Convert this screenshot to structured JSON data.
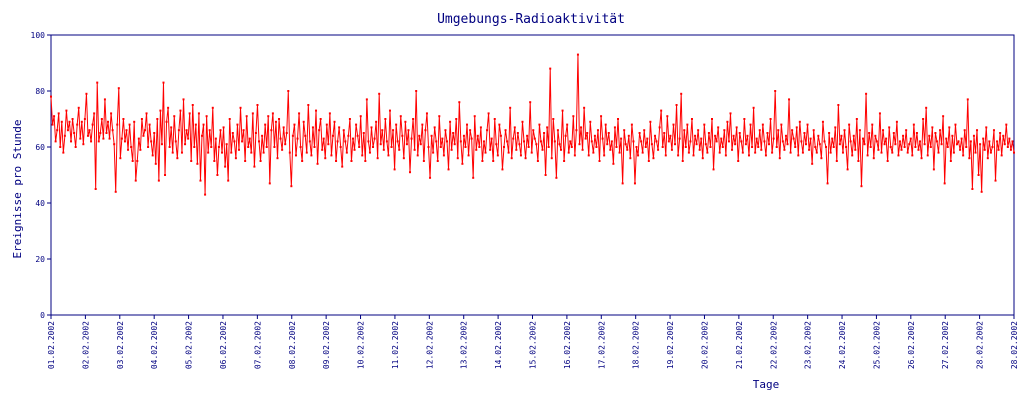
{
  "chart_data": {
    "type": "line",
    "title": "Umgebungs-Radioaktivität",
    "xlabel": "Tage",
    "ylabel": "Ereignisse pro Stunde",
    "ylim": [
      0,
      100
    ],
    "y_ticks": [
      0,
      20,
      40,
      60,
      80,
      100
    ],
    "x_ticks": [
      "01.02.2002",
      "02.02.2002",
      "03.02.2002",
      "04.02.2002",
      "05.02.2002",
      "06.02.2002",
      "07.02.2002",
      "08.02.2002",
      "09.02.2002",
      "10.02.2002",
      "11.02.2002",
      "12.02.2002",
      "13.02.2002",
      "14.02.2002",
      "15.02.2002",
      "16.02.2002",
      "17.02.2002",
      "18.02.2002",
      "19.02.2002",
      "20.02.2002",
      "21.02.2002",
      "22.02.2002",
      "23.02.2002",
      "24.02.2002",
      "25.02.2002",
      "26.02.2002",
      "27.02.2002",
      "28.02.2002",
      "28.02.2002"
    ],
    "grid": false,
    "colors": {
      "axis": "#000080",
      "series": "#ff0000",
      "background": "#ffffff"
    },
    "series": [
      {
        "values": [
          78,
          68,
          71,
          62,
          66,
          72,
          60,
          69,
          58,
          64,
          73,
          66,
          69,
          62,
          70,
          65,
          60,
          68,
          74,
          63,
          69,
          61,
          70,
          79,
          64,
          66,
          62,
          68,
          72,
          45,
          83,
          62,
          65,
          70,
          63,
          77,
          65,
          69,
          63,
          72,
          66,
          61,
          44,
          68,
          81,
          56,
          63,
          70,
          62,
          66,
          59,
          68,
          60,
          55,
          69,
          48,
          55,
          63,
          59,
          70,
          64,
          66,
          72,
          60,
          68,
          62,
          57,
          65,
          54,
          70,
          48,
          73,
          61,
          83,
          50,
          69,
          74,
          60,
          67,
          58,
          71,
          62,
          56,
          66,
          73,
          58,
          77,
          61,
          66,
          63,
          72,
          55,
          75,
          60,
          68,
          54,
          72,
          48,
          64,
          68,
          43,
          71,
          58,
          66,
          60,
          74,
          55,
          63,
          50,
          60,
          66,
          58,
          67,
          53,
          61,
          48,
          70,
          58,
          65,
          62,
          56,
          68,
          59,
          74,
          62,
          66,
          55,
          71,
          60,
          63,
          58,
          72,
          53,
          65,
          75,
          62,
          55,
          64,
          58,
          68,
          60,
          71,
          47,
          66,
          72,
          60,
          69,
          56,
          70,
          63,
          59,
          67,
          61,
          65,
          80,
          58,
          46,
          64,
          68,
          57,
          63,
          72,
          60,
          55,
          69,
          64,
          58,
          75,
          62,
          57,
          67,
          60,
          73,
          54,
          66,
          70,
          59,
          63,
          56,
          68,
          61,
          72,
          57,
          64,
          69,
          55,
          62,
          67,
          60,
          53,
          66,
          62,
          58,
          64,
          70,
          55,
          63,
          59,
          68,
          64,
          60,
          71,
          57,
          65,
          55,
          77,
          62,
          58,
          67,
          60,
          63,
          69,
          56,
          79,
          61,
          66,
          59,
          70,
          62,
          57,
          73,
          60,
          66,
          52,
          68,
          62,
          59,
          71,
          64,
          56,
          69,
          61,
          66,
          51,
          63,
          70,
          59,
          80,
          57,
          64,
          61,
          68,
          55,
          66,
          72,
          60,
          49,
          64,
          58,
          67,
          62,
          55,
          71,
          60,
          63,
          57,
          66,
          62,
          52,
          69,
          59,
          65,
          61,
          70,
          56,
          76,
          62,
          54,
          64,
          60,
          68,
          57,
          66,
          63,
          49,
          71,
          59,
          64,
          60,
          67,
          55,
          62,
          58,
          66,
          72,
          59,
          63,
          55,
          70,
          61,
          57,
          68,
          64,
          52,
          60,
          66,
          62,
          58,
          74,
          56,
          63,
          67,
          59,
          65,
          61,
          57,
          69,
          62,
          56,
          64,
          60,
          76,
          58,
          66,
          63,
          61,
          55,
          68,
          62,
          59,
          65,
          50,
          67,
          60,
          88,
          56,
          70,
          62,
          49,
          66,
          61,
          59,
          73,
          55,
          64,
          68,
          58,
          62,
          60,
          71,
          57,
          66,
          93,
          61,
          67,
          59,
          74,
          63,
          65,
          57,
          69,
          62,
          58,
          64,
          60,
          66,
          55,
          71,
          63,
          57,
          68,
          61,
          65,
          59,
          62,
          54,
          67,
          60,
          70,
          58,
          63,
          47,
          66,
          61,
          59,
          64,
          56,
          68,
          62,
          47,
          60,
          57,
          65,
          62,
          58,
          66,
          60,
          63,
          55,
          69,
          61,
          56,
          64,
          62,
          59,
          67,
          73,
          60,
          65,
          57,
          71,
          62,
          64,
          59,
          68,
          61,
          75,
          57,
          63,
          79,
          55,
          66,
          60,
          68,
          58,
          62,
          70,
          57,
          64,
          61,
          66,
          59,
          63,
          56,
          68,
          61,
          58,
          65,
          60,
          70,
          52,
          64,
          62,
          67,
          58,
          63,
          60,
          66,
          57,
          69,
          62,
          72,
          59,
          64,
          61,
          67,
          55,
          65,
          62,
          58,
          70,
          61,
          64,
          57,
          68,
          60,
          74,
          58,
          63,
          60,
          66,
          59,
          68,
          62,
          57,
          65,
          61,
          70,
          58,
          63,
          80,
          60,
          66,
          56,
          68,
          62,
          59,
          64,
          61,
          77,
          58,
          66,
          63,
          60,
          67,
          57,
          69,
          62,
          58,
          65,
          61,
          68,
          59,
          63,
          54,
          66,
          60,
          58,
          64,
          61,
          56,
          69,
          62,
          60,
          47,
          65,
          58,
          63,
          60,
          67,
          55,
          75,
          61,
          64,
          58,
          66,
          60,
          52,
          68,
          62,
          57,
          64,
          59,
          70,
          55,
          66,
          46,
          63,
          61,
          79,
          57,
          65,
          60,
          68,
          56,
          64,
          62,
          59,
          72,
          58,
          66,
          61,
          63,
          55,
          67,
          60,
          58,
          65,
          61,
          69,
          57,
          62,
          59,
          64,
          60,
          66,
          58,
          61,
          63,
          57,
          68,
          60,
          65,
          59,
          62,
          56,
          70,
          61,
          74,
          57,
          64,
          60,
          67,
          52,
          65,
          62,
          58,
          66,
          61,
          71,
          47,
          63,
          60,
          67,
          55,
          64,
          58,
          68,
          61,
          62,
          59,
          63,
          57,
          66,
          60,
          77,
          56,
          62,
          45,
          64,
          58,
          66,
          50,
          61,
          44,
          63,
          59,
          67,
          56,
          62,
          58,
          60,
          66,
          48,
          62,
          59,
          65,
          57,
          64,
          61,
          68,
          60,
          63,
          59,
          62,
          58
        ]
      }
    ]
  }
}
